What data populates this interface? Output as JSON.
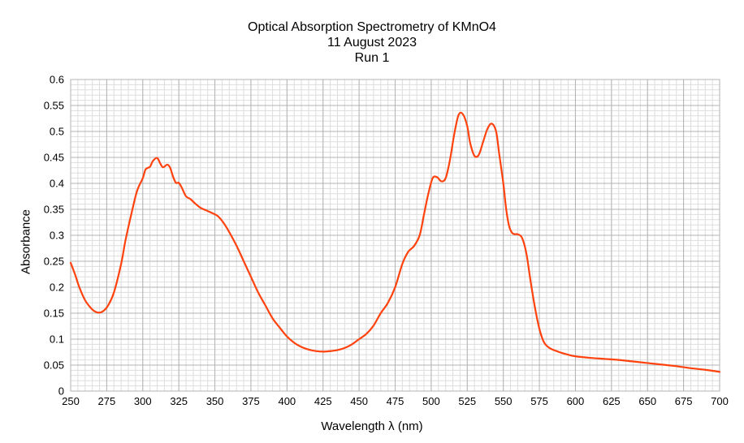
{
  "chart_data": {
    "type": "line",
    "title": "Optical Absorption Spectrometry of KMnO4",
    "subtitle_lines": [
      "11 August 2023",
      "Run 1"
    ],
    "xlabel": "Wavelength λ (nm)",
    "ylabel": "Absorbance",
    "xlim": [
      250,
      700
    ],
    "ylim": [
      0,
      0.6
    ],
    "x_ticks": [
      250,
      275,
      300,
      325,
      350,
      375,
      400,
      425,
      450,
      475,
      500,
      525,
      550,
      575,
      600,
      625,
      650,
      675,
      700
    ],
    "y_ticks": [
      0,
      0.05,
      0.1,
      0.15,
      0.2,
      0.25,
      0.3,
      0.35,
      0.4,
      0.45,
      0.5,
      0.55,
      0.6
    ],
    "y_tick_labels": [
      "0",
      "0.05",
      "0.1",
      "0.15",
      "0.2",
      "0.25",
      "0.3",
      "0.35",
      "0.4",
      "0.45",
      "0.5",
      "0.55",
      "0.6"
    ],
    "grid": "major and minor",
    "series": [
      {
        "color": "#ff420e",
        "x": [
          250,
          253,
          256,
          260,
          264,
          267,
          270,
          273,
          276,
          280,
          285,
          288,
          292,
          296,
          300,
          302,
          305,
          307,
          310,
          312,
          314,
          317,
          319,
          321,
          323,
          325,
          327,
          330,
          333,
          336,
          340,
          344,
          348,
          352,
          356,
          360,
          365,
          370,
          375,
          380,
          385,
          390,
          395,
          400,
          405,
          410,
          415,
          420,
          425,
          430,
          435,
          440,
          445,
          450,
          455,
          460,
          465,
          470,
          475,
          480,
          484,
          488,
          492,
          495,
          498,
          501,
          504,
          507,
          510,
          513,
          516,
          519,
          522,
          525,
          527,
          530,
          533,
          536,
          539,
          542,
          545,
          547,
          550,
          552,
          554,
          556,
          558,
          560,
          563,
          566,
          569,
          572,
          575,
          578,
          581,
          584,
          587,
          590,
          595,
          600,
          610,
          620,
          630,
          640,
          650,
          660,
          670,
          680,
          690,
          700
        ],
        "y": [
          0.247,
          0.225,
          0.2,
          0.175,
          0.16,
          0.153,
          0.151,
          0.155,
          0.165,
          0.19,
          0.245,
          0.29,
          0.34,
          0.385,
          0.41,
          0.427,
          0.432,
          0.443,
          0.449,
          0.439,
          0.431,
          0.436,
          0.43,
          0.413,
          0.401,
          0.401,
          0.392,
          0.375,
          0.37,
          0.362,
          0.353,
          0.348,
          0.343,
          0.337,
          0.324,
          0.306,
          0.28,
          0.25,
          0.22,
          0.19,
          0.165,
          0.14,
          0.122,
          0.105,
          0.093,
          0.085,
          0.08,
          0.077,
          0.076,
          0.077,
          0.079,
          0.083,
          0.09,
          0.1,
          0.11,
          0.126,
          0.15,
          0.17,
          0.2,
          0.245,
          0.268,
          0.279,
          0.3,
          0.34,
          0.38,
          0.41,
          0.412,
          0.404,
          0.41,
          0.445,
          0.495,
          0.532,
          0.533,
          0.51,
          0.478,
          0.453,
          0.455,
          0.48,
          0.505,
          0.515,
          0.5,
          0.46,
          0.4,
          0.35,
          0.318,
          0.305,
          0.302,
          0.302,
          0.295,
          0.265,
          0.21,
          0.16,
          0.12,
          0.095,
          0.085,
          0.08,
          0.077,
          0.074,
          0.07,
          0.067,
          0.064,
          0.062,
          0.06,
          0.057,
          0.054,
          0.051,
          0.048,
          0.044,
          0.041,
          0.037
        ]
      }
    ]
  }
}
